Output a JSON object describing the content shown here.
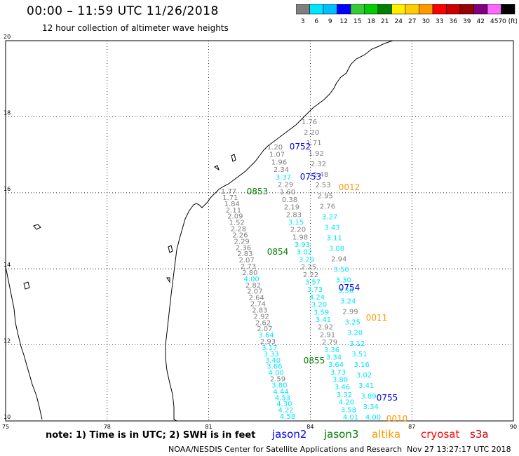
{
  "header": {
    "title": "00:00  –  11:59 UTC 11/26/2018",
    "subtitle": "12 hour collection of altimeter wave heights"
  },
  "colorbar": {
    "labels": [
      "3",
      "6",
      "9",
      "12",
      "15",
      "18",
      "21",
      "24",
      "27",
      "30",
      "33",
      "36",
      "39",
      "42",
      "45",
      "70 (ft)"
    ],
    "colors": [
      "#7f7f7f",
      "#00e5ff",
      "#00bfff",
      "#0000ff",
      "#33cc33",
      "#00cc00",
      "#007f00",
      "#ffee00",
      "#ffcc00",
      "#ff9900",
      "#ff0000",
      "#cc0000",
      "#990000",
      "#800080",
      "#ff66ff",
      "#000000"
    ]
  },
  "map": {
    "lon_ticks": [
      "75",
      "78",
      "81",
      "84",
      "87",
      "90"
    ],
    "lat_ticks": [
      "10",
      "12",
      "14",
      "16",
      "18",
      "20"
    ],
    "lon_range": [
      75,
      90
    ],
    "lat_range": [
      10,
      20
    ]
  },
  "passes": [
    {
      "label": "0752",
      "satellite": "jason2"
    },
    {
      "label": "0753",
      "satellite": "jason2"
    },
    {
      "label": "0754",
      "satellite": "jason2"
    },
    {
      "label": "0755",
      "satellite": "jason2"
    },
    {
      "label": "0853",
      "satellite": "jason3"
    },
    {
      "label": "0854",
      "satellite": "jason3"
    },
    {
      "label": "0855",
      "satellite": "jason3"
    },
    {
      "label": "0012",
      "satellite": "altika"
    },
    {
      "label": "0011",
      "satellite": "altika"
    },
    {
      "label": "0010",
      "satellite": "altika"
    }
  ],
  "wave_values": {
    "track_a": [
      "1.76",
      "2.20",
      "1.71",
      "1.92",
      "2.32",
      "2.48",
      "2.53",
      "2.95",
      "2.76",
      "3.27",
      "3.43",
      "3.11",
      "3.08",
      "2.94",
      "3.56",
      "3.30",
      "3.36",
      "3.24",
      "2.99",
      "3.25",
      "3.20",
      "3.12",
      "3.51",
      "3.16",
      "3.02",
      "3.41",
      "3.89",
      "3.34",
      "4.00"
    ],
    "track_b": [
      "1.20",
      "1.07",
      "1.96",
      "2.34",
      "3.37",
      "2.29",
      "1.60",
      "0.38",
      "2.19",
      "2.83",
      "3.15",
      "2.20",
      "1.98",
      "3.93",
      "3.02",
      "3.29",
      "2.25",
      "2.22",
      "3.57",
      "3.73",
      "4.24",
      "3.20",
      "3.59",
      "3.41",
      "2.92",
      "2.91",
      "2.79",
      "3.36",
      "3.34",
      "3.64",
      "3.73",
      "3.80",
      "3.46",
      "3.32",
      "4.20",
      "3.58",
      "4.01"
    ],
    "track_c": [
      "1.77",
      "1.71",
      "1.84",
      "2.11",
      "2.09",
      "1.52",
      "2.28",
      "2.26",
      "2.29",
      "2.36",
      "2.83",
      "2.07",
      "2.73",
      "2.80",
      "4.00",
      "2.82",
      "2.07",
      "2.64",
      "2.74",
      "2.83",
      "2.92",
      "2.62",
      "2.07",
      "3.64",
      "2.93",
      "3.17",
      "3.33",
      "3.40",
      "3.66",
      "4.00",
      "2.59",
      "3.80",
      "4.44",
      "4.53",
      "4.30",
      "4.22",
      "4.58"
    ]
  },
  "footer": {
    "note": "note:  1) Time is in UTC; 2) SWH is in feet",
    "legend": [
      {
        "name": "jason2",
        "color": "#0000ff"
      },
      {
        "name": "jason3",
        "color": "#007f00"
      },
      {
        "name": "altika",
        "color": "#ff9900"
      },
      {
        "name": "cryosat",
        "color": "#ff0000"
      },
      {
        "name": "s3a",
        "color": "#cc0000"
      }
    ],
    "credit": "NOAA/NESDIS Center for Satellite Applications and Research",
    "timestamp": "Nov 27 13:27:17 UTC 2018"
  }
}
